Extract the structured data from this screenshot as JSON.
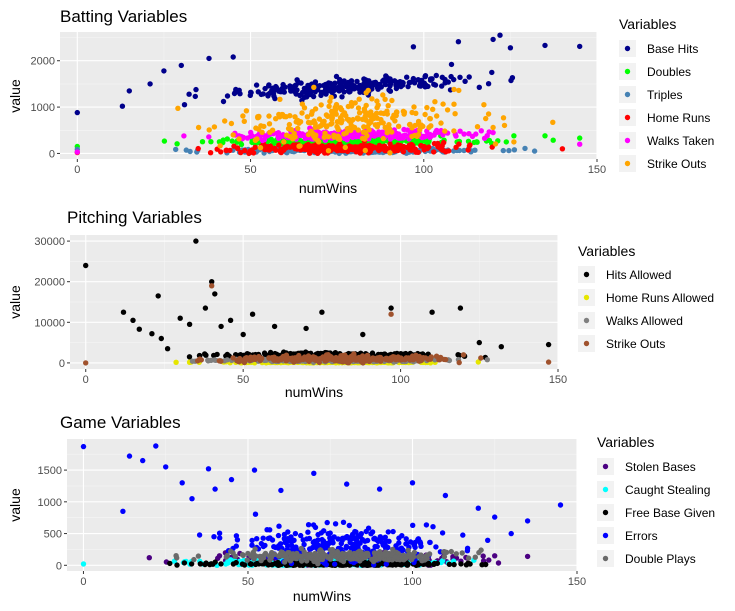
{
  "chart_data": [
    {
      "type": "scatter",
      "title": "Batting Variables",
      "xlabel": "numWins",
      "ylabel": "value",
      "xlim": [
        -5,
        150
      ],
      "ylim": [
        -120,
        2620
      ],
      "xticks": [
        0,
        50,
        100,
        150
      ],
      "yticks": [
        0,
        1000,
        2000
      ],
      "grid": true,
      "legend_title": "Variables",
      "legend_position": "right",
      "series": [
        {
          "name": "Base Hits",
          "color": "#00008B",
          "center": 1450,
          "spread": 90,
          "trend": 4,
          "outliers": [
            [
              0,
              880
            ],
            [
              13,
              1020
            ],
            [
              15,
              1350
            ],
            [
              21,
              1500
            ],
            [
              25,
              1780
            ],
            [
              30,
              1900
            ],
            [
              38,
              2050
            ],
            [
              45,
              2080
            ],
            [
              97,
              2300
            ],
            [
              110,
              2410
            ],
            [
              120,
              2460
            ],
            [
              122,
              2550
            ],
            [
              125,
              2280
            ],
            [
              135,
              2330
            ],
            [
              145,
              2310
            ],
            [
              108,
              1920
            ]
          ]
        },
        {
          "name": "Doubles",
          "color": "#00FF00",
          "center": 260,
          "spread": 40,
          "trend": 0.5,
          "outliers": [
            [
              0,
              150
            ],
            [
              126,
              380
            ],
            [
              135,
              380
            ],
            [
              145,
              330
            ]
          ]
        },
        {
          "name": "Triples",
          "color": "#4682B4",
          "center": 60,
          "spread": 25,
          "trend": 0,
          "outliers": [
            [
              0,
              90
            ]
          ]
        },
        {
          "name": "Home Runs",
          "color": "#FF0000",
          "center": 110,
          "spread": 50,
          "trend": 0.3,
          "outliers": [
            [
              0,
              20
            ],
            [
              140,
              100
            ]
          ]
        },
        {
          "name": "Walks Taken",
          "color": "#FF00FF",
          "center": 400,
          "spread": 50,
          "trend": 1,
          "outliers": [
            [
              0,
              30
            ],
            [
              120,
              450
            ],
            [
              145,
              200
            ]
          ]
        },
        {
          "name": "Strike Outs",
          "color": "#FFA500",
          "center": 700,
          "spread": 260,
          "trend": 2,
          "outliers": [
            [
              35,
              560
            ],
            [
              45,
              400
            ],
            [
              120,
              560
            ],
            [
              126,
              250
            ]
          ]
        }
      ]
    },
    {
      "type": "scatter",
      "title": "Pitching Variables",
      "xlabel": "numWins",
      "ylabel": "value",
      "xlim": [
        -5,
        150
      ],
      "ylim": [
        -1500,
        31500
      ],
      "xticks": [
        0,
        50,
        100,
        150
      ],
      "yticks": [
        0,
        10000,
        20000,
        30000
      ],
      "grid": true,
      "legend_title": "Variables",
      "legend_position": "right",
      "series": [
        {
          "name": "Hits Allowed",
          "color": "#000000",
          "center": 1900,
          "spread": 300,
          "trend": 0,
          "outliers": [
            [
              0,
              24000
            ],
            [
              12,
              12500
            ],
            [
              15,
              10500
            ],
            [
              17,
              8300
            ],
            [
              21,
              7200
            ],
            [
              23,
              16500
            ],
            [
              24,
              6000
            ],
            [
              26,
              3500
            ],
            [
              30,
              11000
            ],
            [
              33,
              9500
            ],
            [
              35,
              30000
            ],
            [
              38,
              13500
            ],
            [
              40,
              20000
            ],
            [
              41,
              17000
            ],
            [
              43,
              9000
            ],
            [
              46,
              10500
            ],
            [
              50,
              7000
            ],
            [
              53,
              12000
            ],
            [
              60,
              9000
            ],
            [
              70,
              8500
            ],
            [
              75,
              12500
            ],
            [
              88,
              7000
            ],
            [
              97,
              13500
            ],
            [
              110,
              12500
            ],
            [
              119,
              13500
            ],
            [
              125,
              5000
            ],
            [
              132,
              4000
            ],
            [
              147,
              4500
            ]
          ]
        },
        {
          "name": "Home Runs Allowed",
          "color": "#E6E600",
          "center": 150,
          "spread": 60,
          "trend": 0,
          "outliers": []
        },
        {
          "name": "Walks Allowed",
          "color": "#808080",
          "center": 600,
          "spread": 150,
          "trend": 0,
          "outliers": []
        },
        {
          "name": "Strike Outs",
          "color": "#A0522D",
          "center": 1000,
          "spread": 400,
          "trend": 0,
          "outliers": [
            [
              0,
              0
            ],
            [
              40,
              19000
            ],
            [
              97,
              12000
            ],
            [
              120,
              2000
            ],
            [
              147,
              200
            ]
          ]
        }
      ]
    },
    {
      "type": "scatter",
      "title": "Game Variables",
      "xlabel": "numWins",
      "ylabel": "value",
      "xlim": [
        -5,
        150
      ],
      "ylim": [
        -90,
        1990
      ],
      "xticks": [
        0,
        50,
        100,
        150
      ],
      "yticks": [
        0,
        500,
        1000,
        1500
      ],
      "grid": true,
      "legend_title": "Variables",
      "legend_position": "right",
      "series": [
        {
          "name": "Stolen Bases",
          "color": "#4B0082",
          "center": 90,
          "spread": 45,
          "trend": 0,
          "outliers": [
            [
              20,
              120
            ],
            [
              125,
              150
            ],
            [
              135,
              140
            ]
          ]
        },
        {
          "name": "Caught Stealing",
          "color": "#00FFFF",
          "center": 40,
          "spread": 20,
          "trend": 0,
          "outliers": [
            [
              0,
              20
            ]
          ]
        },
        {
          "name": "Free Base Given",
          "color": "#000000",
          "center": 20,
          "spread": 15,
          "trend": 0,
          "outliers": []
        },
        {
          "name": "Errors",
          "color": "#0000FF",
          "center": 330,
          "spread": 140,
          "trend": 0,
          "outliers": [
            [
              0,
              1870
            ],
            [
              12,
              850
            ],
            [
              14,
              1720
            ],
            [
              18,
              1650
            ],
            [
              22,
              1880
            ],
            [
              25,
              1550
            ],
            [
              30,
              1300
            ],
            [
              33,
              1050
            ],
            [
              38,
              1520
            ],
            [
              40,
              1200
            ],
            [
              45,
              1350
            ],
            [
              52,
              1500
            ],
            [
              60,
              1180
            ],
            [
              70,
              1450
            ],
            [
              80,
              1280
            ],
            [
              90,
              1200
            ],
            [
              100,
              1300
            ],
            [
              110,
              1100
            ],
            [
              120,
              900
            ],
            [
              125,
              760
            ],
            [
              130,
              500
            ],
            [
              135,
              700
            ],
            [
              145,
              950
            ]
          ]
        },
        {
          "name": "Double Plays",
          "color": "#696969",
          "center": 150,
          "spread": 40,
          "trend": 0,
          "outliers": []
        }
      ]
    }
  ]
}
